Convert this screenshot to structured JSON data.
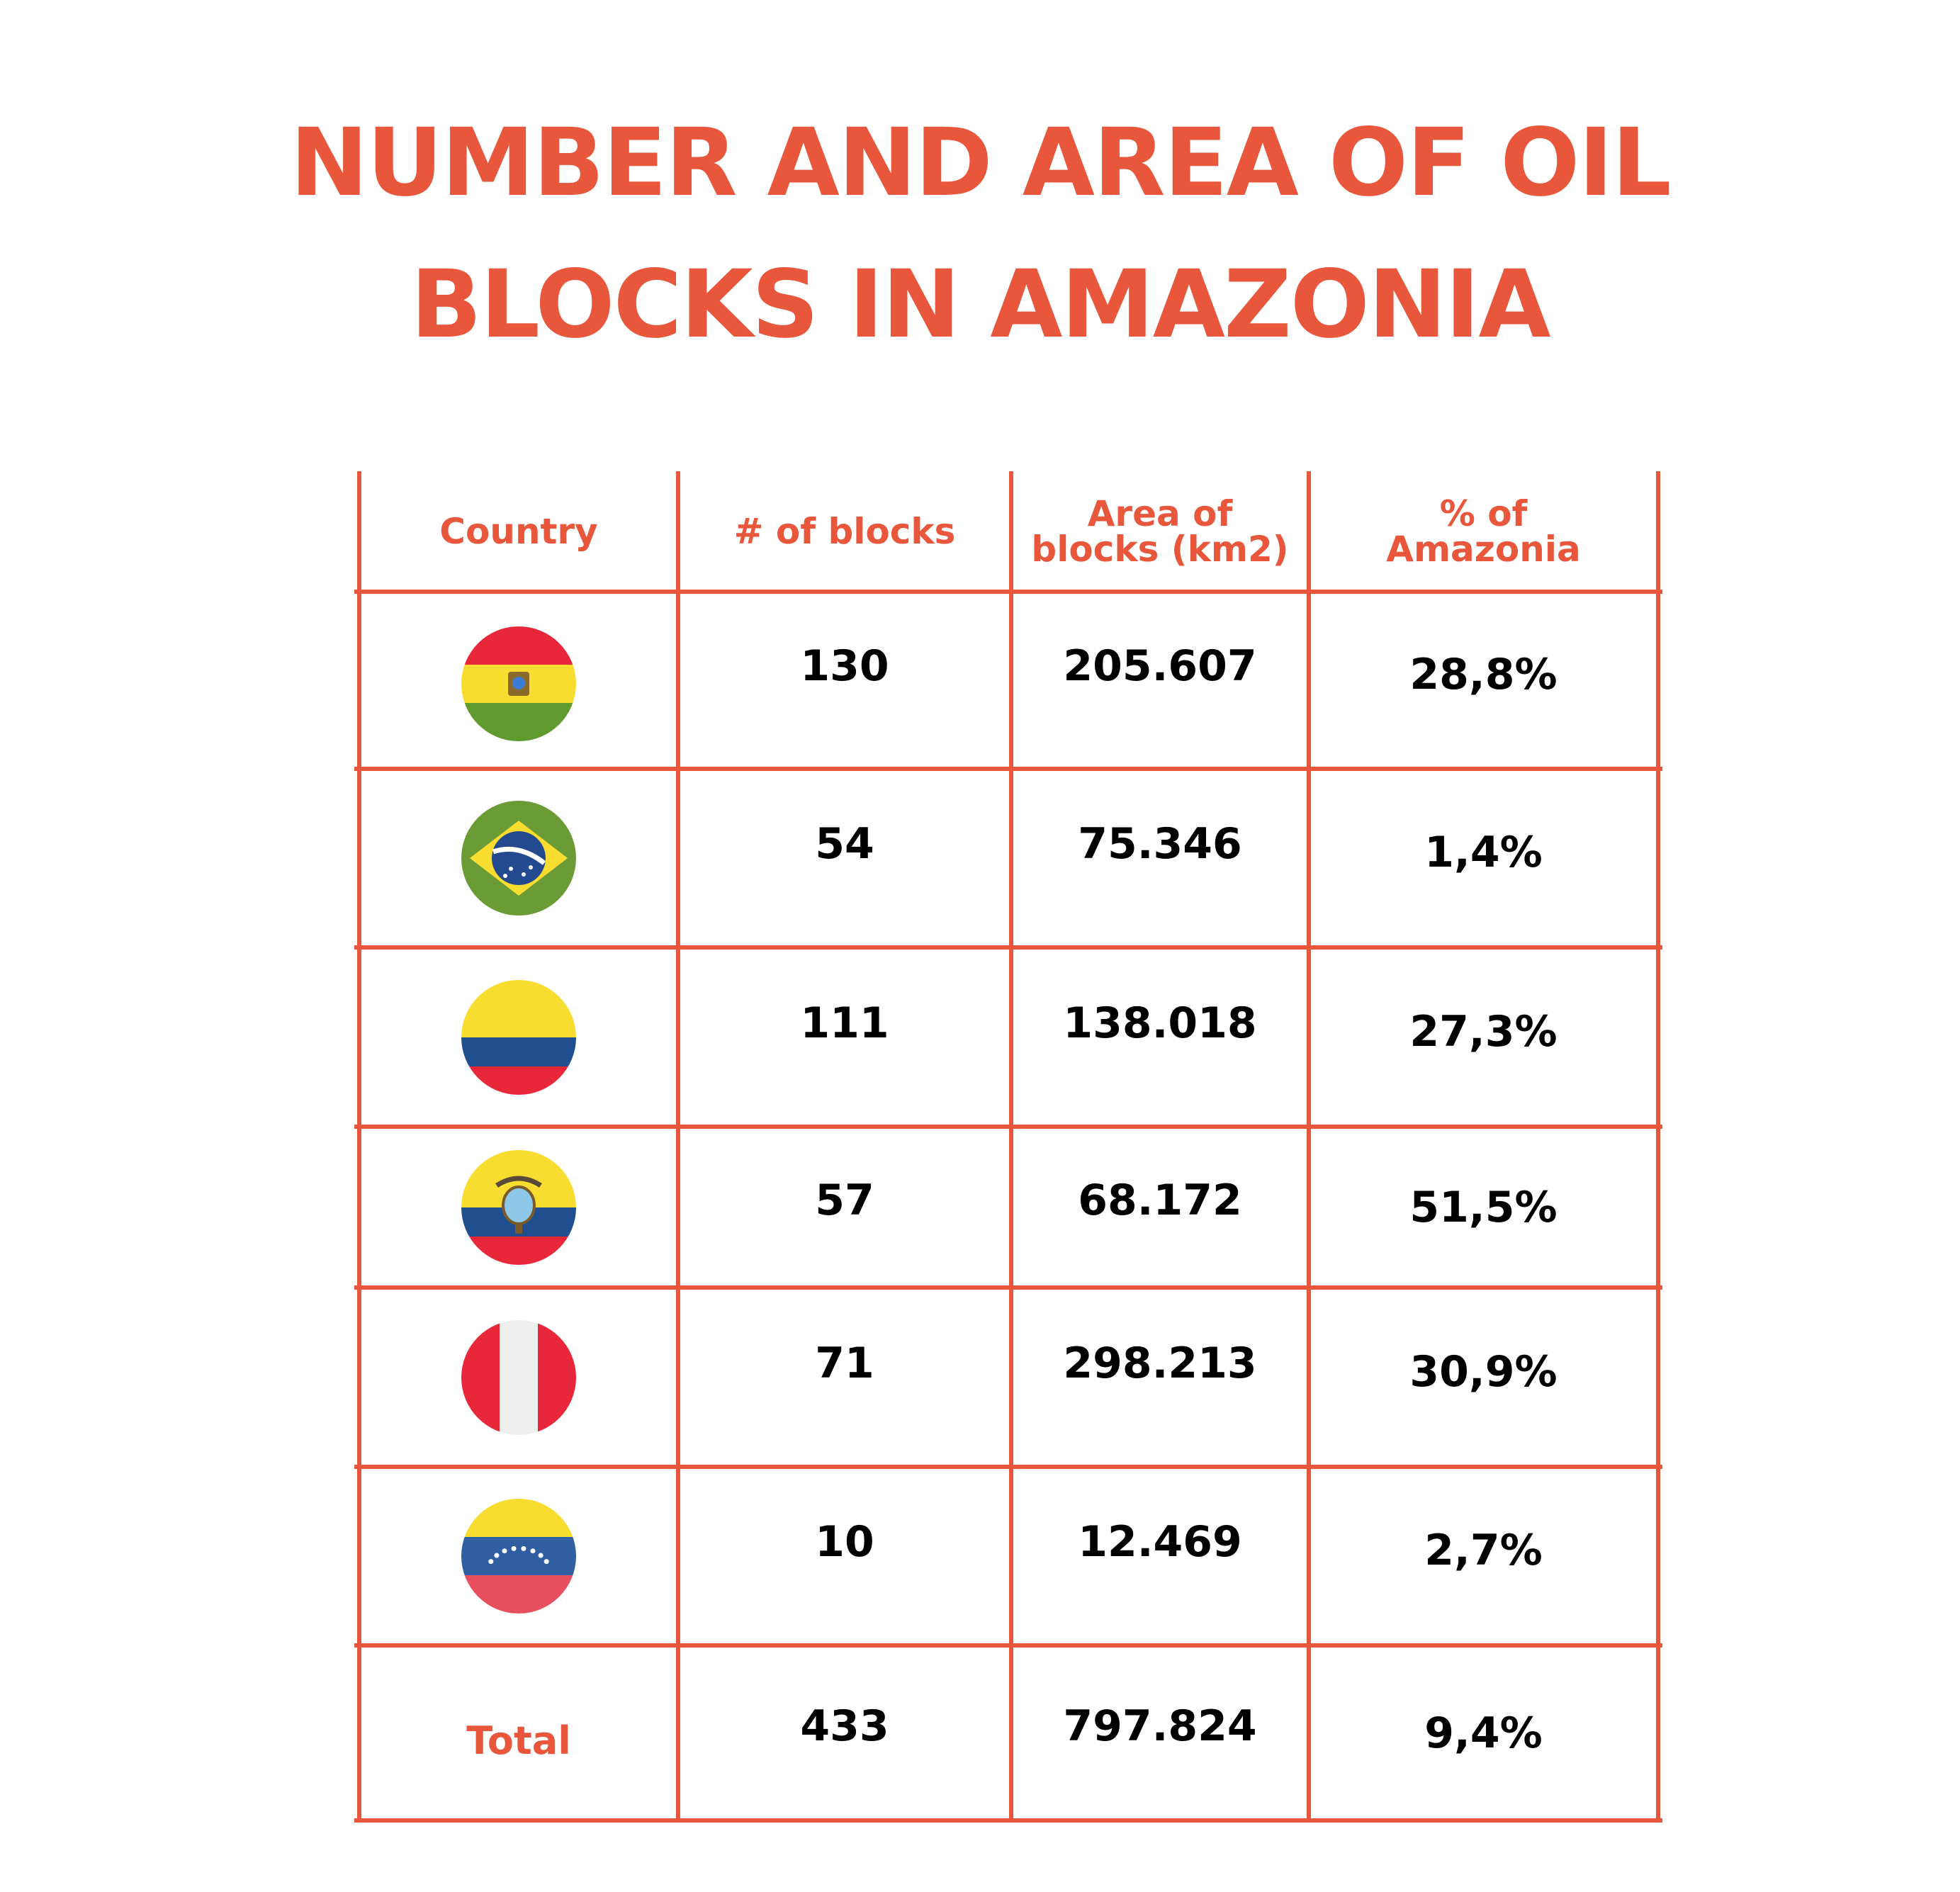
{
  "title_lines": [
    "NUMBER AND AREA OF OIL",
    "BLOCKS IN AMAZONIA"
  ],
  "chart_data": {
    "type": "table",
    "columns": [
      {
        "label_lines": [
          "Country"
        ]
      },
      {
        "label_lines": [
          "# of blocks"
        ]
      },
      {
        "label_lines": [
          "Area of",
          "blocks (km2)"
        ]
      },
      {
        "label_lines": [
          "% of",
          "Amazonia"
        ]
      }
    ],
    "rows": [
      {
        "flag": "bolivia-flag-icon",
        "blocks": "130",
        "area": "205.607",
        "pct": "28,8%"
      },
      {
        "flag": "brazil-flag-icon",
        "blocks": "54",
        "area": "75.346",
        "pct": "1,4%"
      },
      {
        "flag": "colombia-flag-icon",
        "blocks": "111",
        "area": "138.018",
        "pct": "27,3%"
      },
      {
        "flag": "ecuador-flag-icon",
        "blocks": "57",
        "area": "68.172",
        "pct": "51,5%"
      },
      {
        "flag": "peru-flag-icon",
        "blocks": "71",
        "area": "298.213",
        "pct": "30,9%"
      },
      {
        "flag": "venezuela-flag-icon",
        "blocks": "10",
        "area": "12.469",
        "pct": "2,7%"
      }
    ],
    "total": {
      "label": "Total",
      "blocks": "433",
      "area": "797.824",
      "pct": "9,4%"
    }
  },
  "colors": {
    "accent": "#e8573c",
    "text": "#000000",
    "flag_red": "#e8283a",
    "flag_yellow": "#f8dc2f",
    "flag_green": "#5f9a2e",
    "flag_blue": "#1f4f8f",
    "brazil_green": "#6a9b35",
    "venezuela_blue": "#2f5fa0",
    "venezuela_red": "#e8505f",
    "peru_white": "#eeeeee"
  }
}
